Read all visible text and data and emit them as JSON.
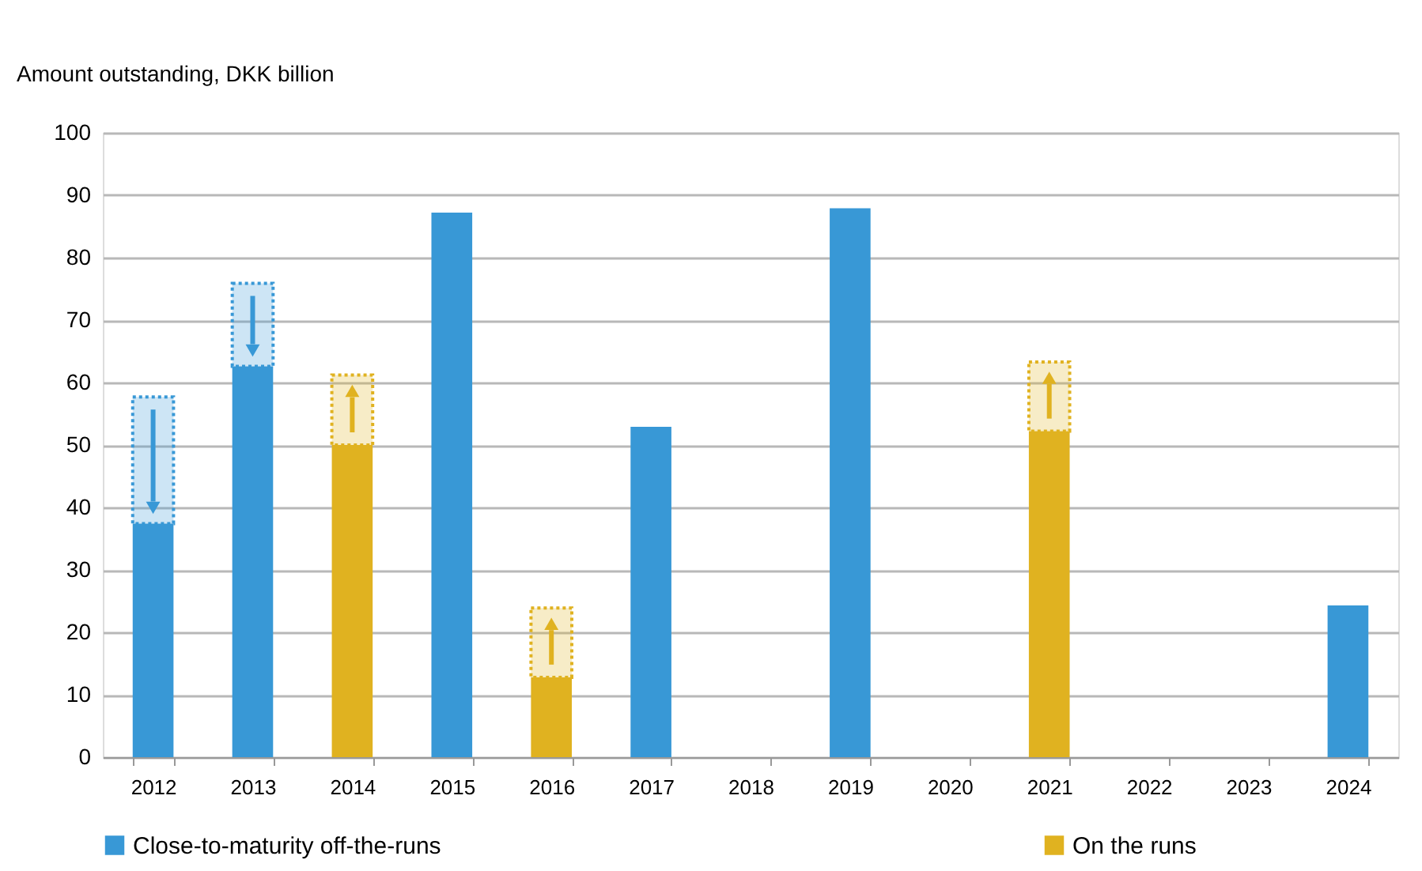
{
  "chart_data": {
    "type": "bar",
    "stacked": true,
    "ylabel": "Amount outstanding, DKK billion",
    "categories": [
      "2012",
      "2013",
      "2014",
      "2015",
      "2016",
      "2017",
      "2018",
      "2019",
      "2020",
      "2021",
      "2022",
      "2023",
      "2024"
    ],
    "series": [
      {
        "name": "Close-to-maturity off-the-runs",
        "color": "#3898d6",
        "values": [
          37.4,
          62.6,
          null,
          87.2,
          null,
          52.9,
          null,
          87.9,
          null,
          null,
          null,
          null,
          24.3
        ]
      },
      {
        "color": "#3898d6",
        "values": [
          20.3,
          13.3,
          null,
          null,
          null,
          null,
          null,
          null,
          null,
          null,
          null,
          null,
          null
        ]
      },
      {
        "name": "On the runs",
        "color": "#e0b220",
        "values": [
          null,
          null,
          50.0,
          null,
          12.8,
          null,
          null,
          null,
          null,
          52.2,
          null,
          null,
          null
        ]
      },
      {
        "color": "#e0b220",
        "values": [
          null,
          null,
          11.2,
          null,
          11.1,
          null,
          null,
          null,
          null,
          11.1,
          null,
          null,
          null
        ]
      }
    ],
    "ylim": [
      0,
      100
    ],
    "yticks": [
      0,
      10,
      20,
      30,
      40,
      50,
      60,
      70,
      80,
      90,
      100
    ],
    "grid": "y",
    "legend": "bottom"
  }
}
